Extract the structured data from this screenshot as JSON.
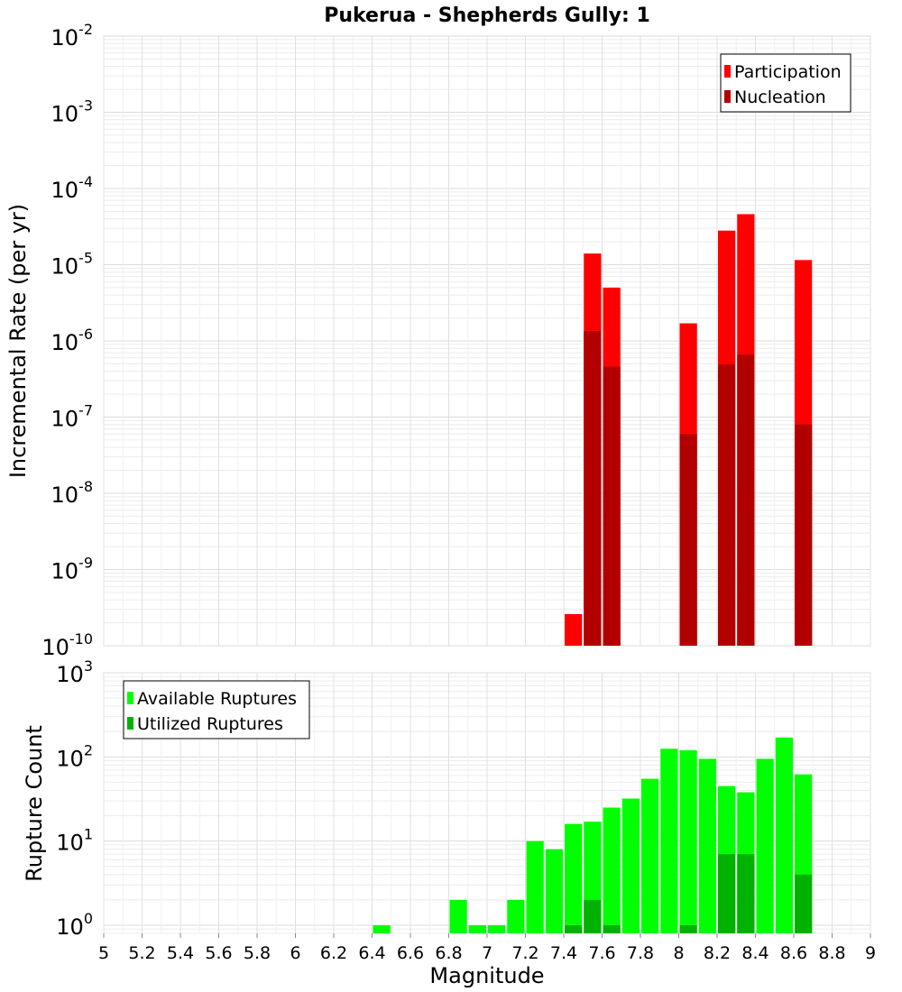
{
  "chart_data": [
    {
      "type": "bar",
      "title": "Pukerua - Shepherds Gully: 1",
      "ylabel": "Incremental Rate (per yr)",
      "y_scale": "log",
      "ylim": [
        1e-10,
        0.01
      ],
      "y_ticks": [
        {
          "base": "10",
          "exp": "-10"
        },
        {
          "base": "10",
          "exp": "-9"
        },
        {
          "base": "10",
          "exp": "-8"
        },
        {
          "base": "10",
          "exp": "-7"
        },
        {
          "base": "10",
          "exp": "-6"
        },
        {
          "base": "10",
          "exp": "-5"
        },
        {
          "base": "10",
          "exp": "-4"
        },
        {
          "base": "10",
          "exp": "-3"
        },
        {
          "base": "10",
          "exp": "-2"
        }
      ],
      "legend_position": "top-right",
      "series": [
        {
          "name": "Participation",
          "color": "#ff0000",
          "points": [
            {
              "x": 7.45,
              "y": 2.6e-10
            },
            {
              "x": 7.55,
              "y": 1.4e-05
            },
            {
              "x": 7.65,
              "y": 5e-06
            },
            {
              "x": 8.05,
              "y": 1.7e-06
            },
            {
              "x": 8.25,
              "y": 2.8e-05
            },
            {
              "x": 8.35,
              "y": 4.6e-05
            },
            {
              "x": 8.65,
              "y": 1.15e-05
            }
          ]
        },
        {
          "name": "Nucleation",
          "color": "#b20000",
          "points": [
            {
              "x": 7.55,
              "y": 1.35e-06
            },
            {
              "x": 7.65,
              "y": 4.6e-07
            },
            {
              "x": 8.05,
              "y": 6e-08
            },
            {
              "x": 8.25,
              "y": 4.9e-07
            },
            {
              "x": 8.35,
              "y": 6.6e-07
            },
            {
              "x": 8.65,
              "y": 8e-08
            }
          ]
        }
      ]
    },
    {
      "type": "bar",
      "xlabel": "Magnitude",
      "ylabel": "Rupture Count",
      "x_scale": "linear",
      "xlim": [
        5,
        9
      ],
      "x_ticks": [
        "5",
        "5.2",
        "5.4",
        "5.6",
        "5.8",
        "6",
        "6.2",
        "6.4",
        "6.6",
        "6.8",
        "7",
        "7.2",
        "7.4",
        "7.6",
        "7.8",
        "8",
        "8.2",
        "8.4",
        "8.6",
        "8.8",
        "9"
      ],
      "y_scale": "log",
      "ylim": [
        0.8,
        1000
      ],
      "y_ticks": [
        {
          "base": "10",
          "exp": "0"
        },
        {
          "base": "10",
          "exp": "1"
        },
        {
          "base": "10",
          "exp": "2"
        },
        {
          "base": "10",
          "exp": "3"
        }
      ],
      "legend_position": "top-left",
      "series": [
        {
          "name": "Available Ruptures",
          "color": "#00ff00",
          "points": [
            {
              "x": 6.45,
              "y": 1
            },
            {
              "x": 6.85,
              "y": 2
            },
            {
              "x": 6.95,
              "y": 1
            },
            {
              "x": 7.05,
              "y": 1
            },
            {
              "x": 7.15,
              "y": 2
            },
            {
              "x": 7.25,
              "y": 10
            },
            {
              "x": 7.35,
              "y": 8
            },
            {
              "x": 7.45,
              "y": 16
            },
            {
              "x": 7.55,
              "y": 17
            },
            {
              "x": 7.65,
              "y": 25
            },
            {
              "x": 7.75,
              "y": 32
            },
            {
              "x": 7.85,
              "y": 55
            },
            {
              "x": 7.95,
              "y": 125
            },
            {
              "x": 8.05,
              "y": 120
            },
            {
              "x": 8.15,
              "y": 95
            },
            {
              "x": 8.25,
              "y": 45
            },
            {
              "x": 8.35,
              "y": 38
            },
            {
              "x": 8.45,
              "y": 95
            },
            {
              "x": 8.55,
              "y": 170
            },
            {
              "x": 8.65,
              "y": 62
            }
          ]
        },
        {
          "name": "Utilized Ruptures",
          "color": "#00b200",
          "points": [
            {
              "x": 7.45,
              "y": 1
            },
            {
              "x": 7.55,
              "y": 2
            },
            {
              "x": 7.65,
              "y": 1
            },
            {
              "x": 8.05,
              "y": 1
            },
            {
              "x": 8.25,
              "y": 7
            },
            {
              "x": 8.35,
              "y": 7
            },
            {
              "x": 8.65,
              "y": 4
            }
          ]
        }
      ]
    }
  ]
}
